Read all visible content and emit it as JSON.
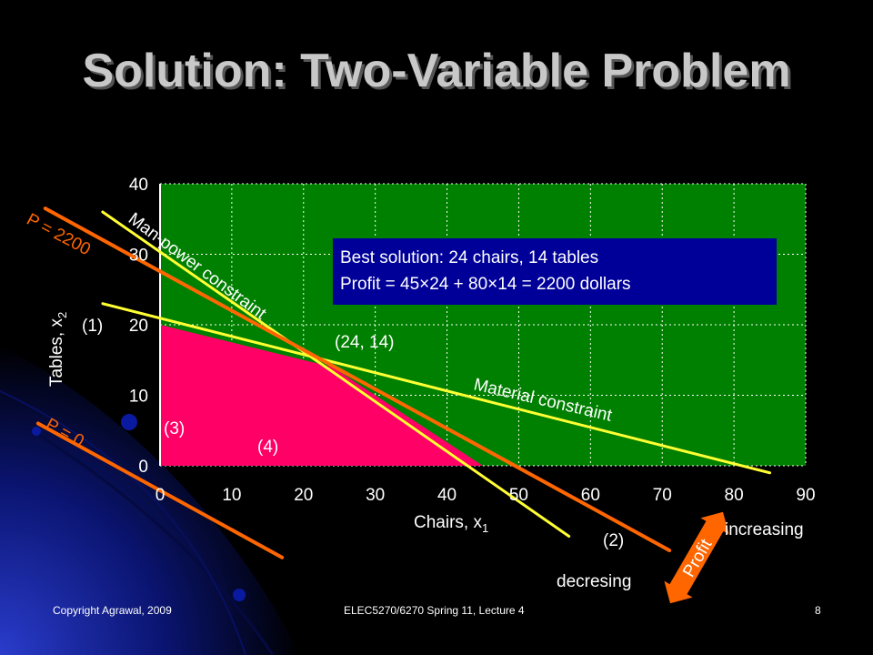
{
  "slide": {
    "title": "Solution: Two-Variable Problem",
    "footer_left": "Copyright Agrawal, 2009",
    "footer_center": "ELEC5270/6270  Spring 11, Lecture 4",
    "page_number": "8"
  },
  "colors": {
    "plot_bg": "#008000",
    "feasible": "#ff0066",
    "constraint": "#ffff33",
    "profit": "#ff6600",
    "callout": "#000099"
  },
  "chart_data": {
    "type": "line",
    "xlabel": "Chairs, x",
    "xlabel_sub": "1",
    "ylabel": "Tables, x",
    "ylabel_sub": "2",
    "xlim": [
      0,
      90
    ],
    "ylim": [
      0,
      40
    ],
    "xticks": [
      "0",
      "10",
      "20",
      "30",
      "40",
      "50",
      "60",
      "70",
      "80",
      "90"
    ],
    "yticks": [
      "0",
      "10",
      "20",
      "30",
      "40"
    ],
    "grid": true,
    "series": [
      {
        "name": "Man-power constraint",
        "points": [
          [
            -8,
            36
          ],
          [
            57,
            -10
          ]
        ]
      },
      {
        "name": "Material constraint",
        "points": [
          [
            -8,
            23
          ],
          [
            85,
            -1
          ]
        ]
      },
      {
        "name": "P = 2200",
        "points": [
          [
            -16,
            36.5
          ],
          [
            71,
            -12
          ]
        ]
      },
      {
        "name": "P = 0",
        "points": [
          [
            -17,
            6
          ],
          [
            17,
            -13
          ]
        ]
      }
    ],
    "feasible_region": [
      [
        0,
        0
      ],
      [
        0,
        20
      ],
      [
        24,
        14
      ],
      [
        45,
        0
      ]
    ],
    "optimum": {
      "point": [
        24,
        14
      ],
      "label": "(24, 14)"
    },
    "annotations": {
      "constraint_1": "(1)",
      "constraint_2": "(2)",
      "constraint_3": "(3)",
      "constraint_4": "(4)",
      "profit_arrow": "Profit",
      "increasing": "increasing",
      "decreasing": "decresing"
    },
    "callout": {
      "line1": "Best solution: 24 chairs, 14 tables",
      "line2": "Profit = 45×24 + 80×14 = 2200 dollars"
    }
  }
}
